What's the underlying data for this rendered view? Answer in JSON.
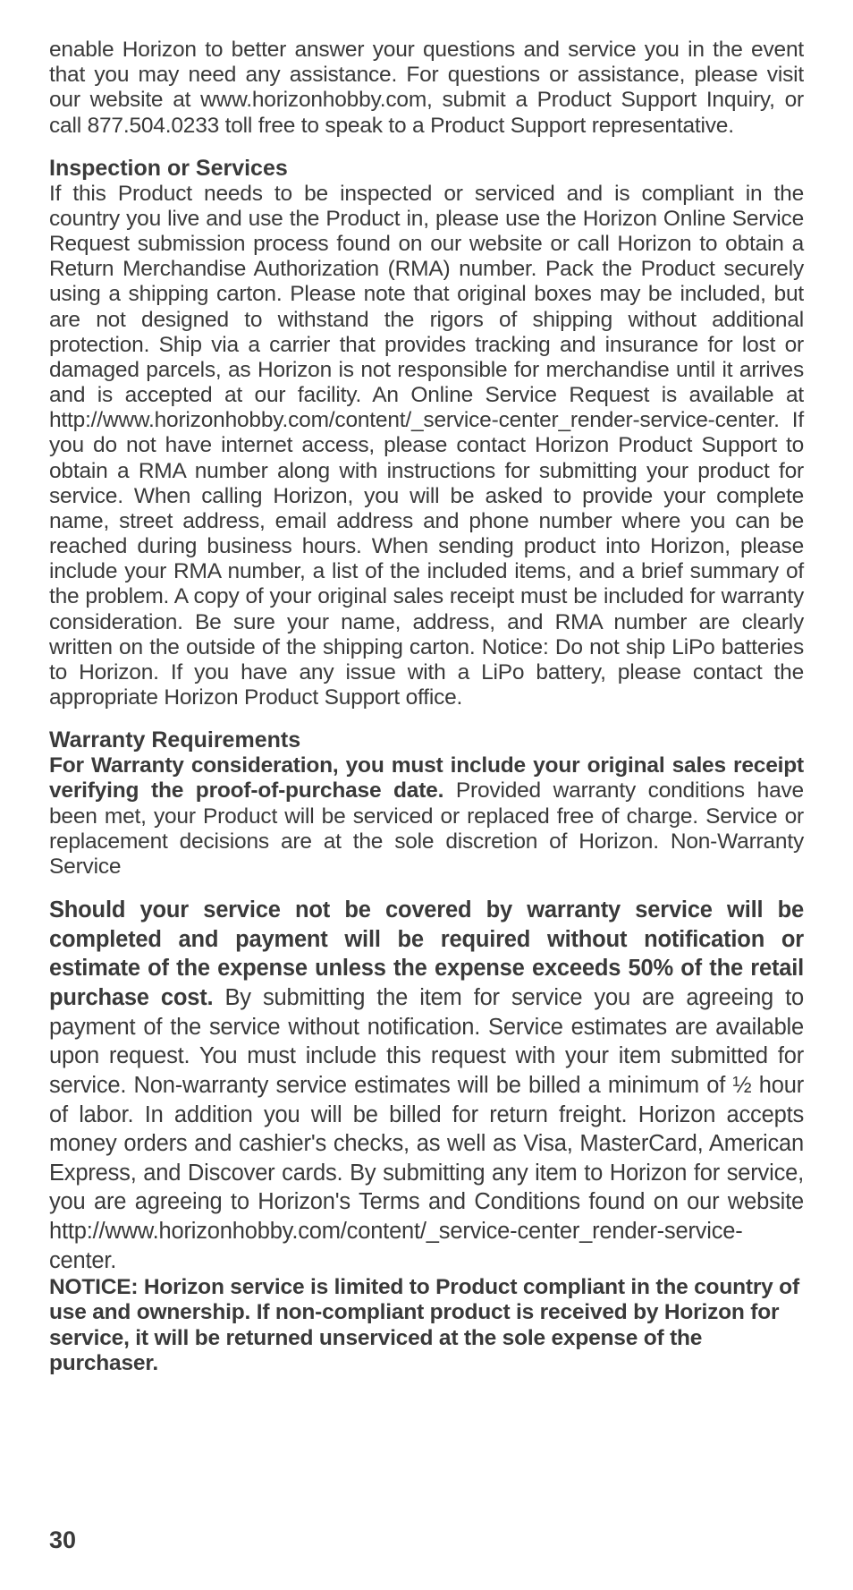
{
  "text_color": "#3a3a3a",
  "background_color": "#ffffff",
  "font_family": "Helvetica Neue Condensed",
  "body_font_size_pt": 18,
  "heading_font_size_pt": 18,
  "page_number": "30",
  "intro_para": "enable Horizon to better answer your questions and service you in the event that you may need any assistance. For questions or assistance, please visit our website at www.horizonhobby.com, submit a Product Support Inquiry, or call 877.504.0233 toll free to speak to a Product Support representative.",
  "h1": "Inspection or Services",
  "p1": "If this Product needs to be inspected or serviced and is compliant in the country you live and use the Product in, please use the Horizon Online Service Request submission process found on our website or call Horizon to obtain a Return Merchandise Authorization (RMA) number. Pack the Product securely using a shipping carton. Please note that original boxes may be included, but are not designed to withstand the rigors of shipping without additional protection. Ship via a carrier that provides tracking and insurance for lost or damaged parcels, as Horizon is not responsible for merchandise until it arrives and is accepted at our facility. An Online Service Request is available at http://www.horizonhobby.com/content/_service-center_render-service-center. If you do not have internet access, please contact Horizon Product Support to obtain a RMA number along with instructions for submitting your product for service. When calling Horizon, you will be asked to provide your complete name, street address, email address and phone number where you can be reached during business hours. When sending product into Horizon, please include your RMA number, a list of the included items, and a brief summary of the problem.  A copy of your original sales receipt must be included for warranty consideration. Be sure your name, address, and RMA number are clearly written on the outside of the shipping carton. Notice: Do not ship LiPo batteries to Horizon. If you have any issue with a LiPo battery, please contact the appropriate Horizon Product Support office.",
  "h2": "Warranty Requirements",
  "p2_bold": "For Warranty consideration, you must include your original sales receipt verifying the proof-of-purchase date.",
  "p2_rest": " Provided warranty conditions have been met, your Product will be serviced or replaced free of charge. Service or replacement decisions are at the sole discretion of Horizon. Non-Warranty Service",
  "p3_bold": "Should your service not be covered by warranty service will be completed and payment will be required without notification or estimate of the expense unless the expense exceeds 50% of the retail purchase cost.",
  "p3_rest": " By submitting the item for service you are agreeing to payment of the service without notification. Service estimates are available upon request. You must include this request with your item submitted for service. Non-warranty service estimates will be billed a minimum of ½ hour of labor. In addition you will be billed for return freight. Horizon accepts money orders and cashier's checks, as well as Visa, MasterCard, American Express, and Discover cards. By submitting any item to Horizon for service, you are agreeing to Horizon's Terms and Conditions found on our website http://www.horizonhobby.com/content/_service-center_render-service-center.",
  "notice_bold": "NOTICE: Horizon service is limited to Product compliant in the country of use and ownership. If non-compliant product is received by Horizon for service, it will be returned unserviced at the sole expense of the purchaser."
}
